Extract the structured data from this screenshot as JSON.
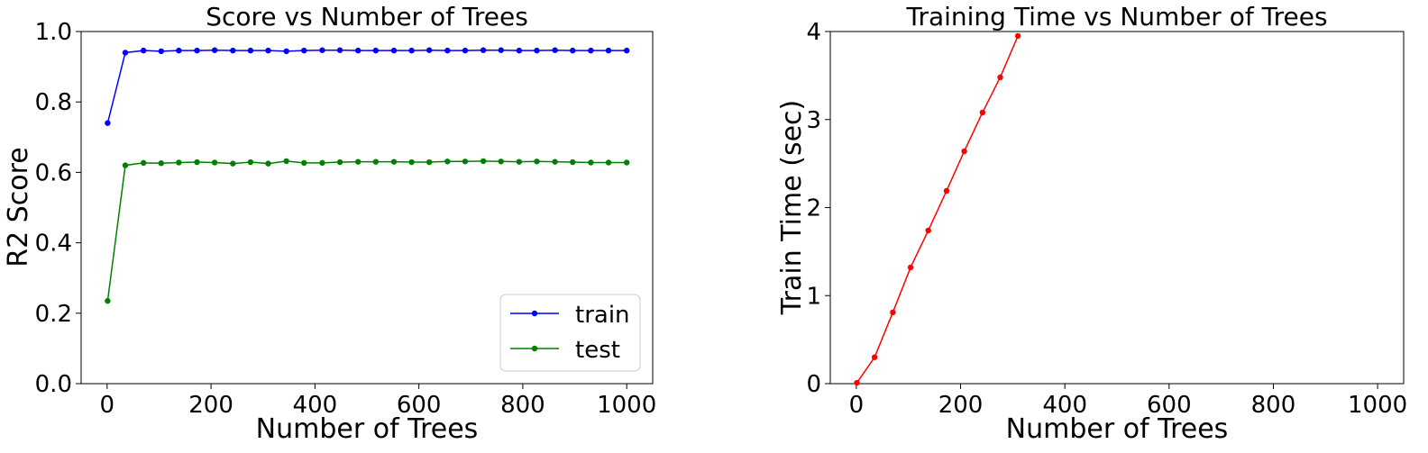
{
  "chart_data": [
    {
      "type": "line",
      "title": "Score vs Number of Trees",
      "xlabel": "Number of Trees",
      "ylabel": "R2 Score",
      "xlim": [
        -50,
        1050
      ],
      "ylim": [
        0.0,
        1.0
      ],
      "xticks": [
        0,
        200,
        400,
        600,
        800,
        1000
      ],
      "yticks": [
        0.0,
        0.2,
        0.4,
        0.6,
        0.8,
        1.0
      ],
      "xtick_labels": [
        "0",
        "200",
        "400",
        "600",
        "800",
        "1000"
      ],
      "ytick_labels": [
        "0.0",
        "0.2",
        "0.4",
        "0.6",
        "0.8",
        "1.0"
      ],
      "legend_position": "lower-right",
      "x": [
        1,
        35,
        70,
        104,
        138,
        173,
        207,
        242,
        276,
        310,
        345,
        379,
        414,
        448,
        483,
        517,
        552,
        586,
        620,
        655,
        689,
        724,
        758,
        793,
        827,
        862,
        896,
        931,
        965,
        1000
      ],
      "series": [
        {
          "name": "train",
          "color": "#0000ff",
          "values": [
            0.74,
            0.94,
            0.946,
            0.944,
            0.946,
            0.946,
            0.947,
            0.946,
            0.946,
            0.946,
            0.944,
            0.946,
            0.947,
            0.947,
            0.946,
            0.946,
            0.946,
            0.946,
            0.947,
            0.946,
            0.946,
            0.947,
            0.947,
            0.946,
            0.946,
            0.947,
            0.946,
            0.946,
            0.946,
            0.946
          ]
        },
        {
          "name": "test",
          "color": "#008000",
          "values": [
            0.235,
            0.62,
            0.627,
            0.626,
            0.628,
            0.629,
            0.628,
            0.625,
            0.629,
            0.625,
            0.632,
            0.627,
            0.627,
            0.629,
            0.63,
            0.63,
            0.63,
            0.629,
            0.629,
            0.631,
            0.631,
            0.632,
            0.631,
            0.63,
            0.631,
            0.63,
            0.629,
            0.628,
            0.628,
            0.628
          ]
        }
      ]
    },
    {
      "type": "line",
      "title": "Training Time vs Number of Trees",
      "xlabel": "Number of Trees",
      "ylabel": "Train Time (sec)",
      "xlim": [
        -50,
        1050
      ],
      "ylim": [
        0,
        4
      ],
      "xticks": [
        0,
        200,
        400,
        600,
        800,
        1000
      ],
      "yticks": [
        0,
        1,
        2,
        3,
        4
      ],
      "xtick_labels": [
        "0",
        "200",
        "400",
        "600",
        "800",
        "1000"
      ],
      "ytick_labels": [
        "0",
        "1",
        "2",
        "3",
        "4"
      ],
      "x": [
        1,
        35,
        70,
        104,
        138,
        173,
        207,
        242,
        276,
        310
      ],
      "series": [
        {
          "name": "train time",
          "color": "#ff0000",
          "values": [
            0.01,
            0.3,
            0.81,
            1.32,
            1.74,
            2.19,
            2.64,
            3.08,
            3.48,
            3.95
          ]
        }
      ]
    }
  ]
}
